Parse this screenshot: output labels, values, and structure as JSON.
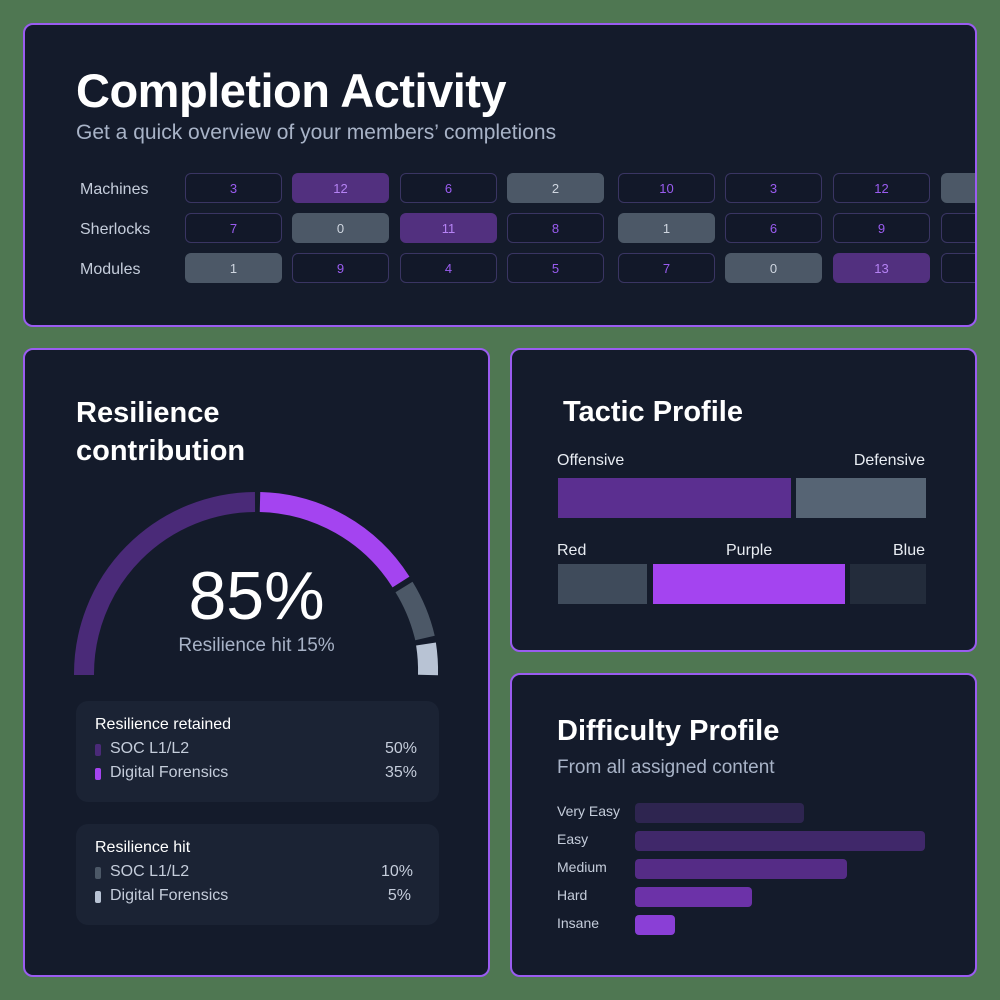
{
  "completion": {
    "title": "Completion Activity",
    "subtitle": "Get a quick overview of your members’ completions",
    "rows": [
      {
        "label": "Machines",
        "cells": [
          {
            "value": "3",
            "style": "outline"
          },
          {
            "value": "12",
            "style": "purple"
          },
          {
            "value": "6",
            "style": "outline"
          },
          {
            "value": "2",
            "style": "gray"
          },
          {
            "value": "10",
            "style": "outline"
          },
          {
            "value": "3",
            "style": "outline"
          },
          {
            "value": "12",
            "style": "outline"
          },
          {
            "value": "",
            "style": "gray"
          }
        ]
      },
      {
        "label": "Sherlocks",
        "cells": [
          {
            "value": "7",
            "style": "outline"
          },
          {
            "value": "0",
            "style": "gray"
          },
          {
            "value": "11",
            "style": "purple"
          },
          {
            "value": "8",
            "style": "outline"
          },
          {
            "value": "1",
            "style": "gray"
          },
          {
            "value": "6",
            "style": "outline"
          },
          {
            "value": "9",
            "style": "outline"
          },
          {
            "value": "",
            "style": "outline"
          }
        ]
      },
      {
        "label": "Modules",
        "cells": [
          {
            "value": "1",
            "style": "gray"
          },
          {
            "value": "9",
            "style": "outline"
          },
          {
            "value": "4",
            "style": "outline"
          },
          {
            "value": "5",
            "style": "outline"
          },
          {
            "value": "7",
            "style": "outline"
          },
          {
            "value": "0",
            "style": "gray"
          },
          {
            "value": "13",
            "style": "purple"
          },
          {
            "value": "",
            "style": "outline"
          }
        ]
      }
    ]
  },
  "resilience": {
    "title_line1": "Resilience",
    "title_line2": "contribution",
    "value": "85%",
    "subtitle": "Resilience hit 15%",
    "retained": {
      "title": "Resilience retained",
      "items": [
        {
          "name": "SOC L1/L2",
          "percent": "50%",
          "color": "#4a2a78"
        },
        {
          "name": "Digital Forensics",
          "percent": "35%",
          "color": "#a444f0"
        }
      ]
    },
    "hit": {
      "title": "Resilience hit",
      "items": [
        {
          "name": "SOC L1/L2",
          "percent": "10%",
          "color": "#4c5867"
        },
        {
          "name": "Digital Forensics",
          "percent": "5%",
          "color": "#b8c3d4"
        }
      ]
    }
  },
  "tactic": {
    "title": "Tactic Profile",
    "row1": {
      "left_label": "Offensive",
      "right_label": "Defensive"
    },
    "row2": {
      "left_label": "Red",
      "center_label": "Purple",
      "right_label": "Blue"
    }
  },
  "difficulty": {
    "title": "Difficulty Profile",
    "subtitle": "From all assigned content",
    "levels": [
      {
        "label": "Very Easy"
      },
      {
        "label": "Easy"
      },
      {
        "label": "Medium"
      },
      {
        "label": "Hard"
      },
      {
        "label": "Insane"
      }
    ]
  },
  "chart_data": [
    {
      "type": "heatmap",
      "title": "Completion Activity",
      "rows": [
        "Machines",
        "Sherlocks",
        "Modules"
      ],
      "values": [
        [
          3,
          12,
          6,
          2,
          10,
          3,
          12
        ],
        [
          7,
          0,
          11,
          8,
          1,
          6,
          9
        ],
        [
          1,
          9,
          4,
          5,
          7,
          0,
          13
        ]
      ]
    },
    {
      "type": "pie",
      "title": "Resilience contribution",
      "categories": [
        "SOC L1/L2 (retained)",
        "Digital Forensics (retained)",
        "SOC L1/L2 (hit)",
        "Digital Forensics (hit)"
      ],
      "values": [
        50,
        35,
        10,
        5
      ],
      "colors": [
        "#4a2a78",
        "#a444f0",
        "#4c5867",
        "#b8c3d4"
      ]
    },
    {
      "type": "bar",
      "title": "Tactic Profile",
      "series": [
        {
          "name": "Offensive/Defensive",
          "categories": [
            "Offensive",
            "Defensive"
          ],
          "values": [
            64,
            36
          ]
        },
        {
          "name": "Red/Purple/Blue",
          "categories": [
            "Red",
            "Purple",
            "Blue"
          ],
          "values": [
            25,
            53,
            22
          ]
        }
      ]
    },
    {
      "type": "bar",
      "title": "Difficulty Profile",
      "categories": [
        "Very Easy",
        "Easy",
        "Medium",
        "Hard",
        "Insane"
      ],
      "values": [
        58,
        100,
        73,
        40,
        14
      ]
    }
  ]
}
